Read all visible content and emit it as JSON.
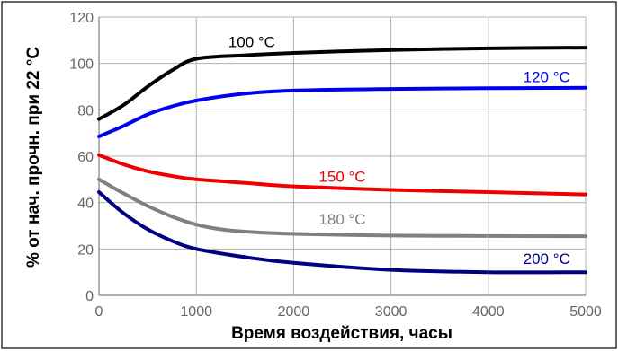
{
  "chart_data": {
    "type": "line",
    "title": "",
    "xlabel": "Время воздействия, часы",
    "ylabel": "% от нач. прочн. при 22 °C",
    "xlim": [
      0,
      5000
    ],
    "ylim": [
      0,
      120
    ],
    "x_ticks": [
      "0",
      "1000",
      "2000",
      "3000",
      "4000",
      "5000"
    ],
    "y_ticks": [
      "0",
      "20",
      "40",
      "60",
      "80",
      "100",
      "120"
    ],
    "grid": true,
    "legend": "none",
    "series": [
      {
        "name": "100 °C",
        "color": "#000000",
        "x": [
          0,
          250,
          500,
          750,
          1000,
          1500,
          2000,
          3000,
          4000,
          5000
        ],
        "y": [
          76,
          82,
          90,
          97,
          102,
          103.5,
          104.5,
          105.8,
          106.5,
          106.8
        ],
        "label_pos": {
          "x": 1570,
          "y": 107
        }
      },
      {
        "name": "120 °C",
        "color": "#0000ee",
        "x": [
          0,
          250,
          500,
          750,
          1000,
          1500,
          2000,
          3000,
          4000,
          5000
        ],
        "y": [
          68.5,
          73,
          78,
          81.5,
          84,
          87,
          88.3,
          89,
          89.3,
          89.5
        ],
        "label_pos": {
          "x": 4600,
          "y": 92
        }
      },
      {
        "name": "150 °C",
        "color": "#ee0000",
        "x": [
          0,
          250,
          500,
          750,
          1000,
          1500,
          2000,
          3000,
          4000,
          5000
        ],
        "y": [
          60.5,
          56.5,
          53.5,
          51.5,
          50,
          48.5,
          47,
          45.5,
          44.5,
          43.5
        ],
        "label_pos": {
          "x": 2500,
          "y": 49
        }
      },
      {
        "name": "180 °C",
        "color": "#808080",
        "x": [
          0,
          250,
          500,
          750,
          1000,
          1250,
          1500,
          2000,
          3000,
          4000,
          5000
        ],
        "y": [
          50,
          44,
          38.5,
          34,
          30.5,
          28.5,
          27.5,
          26.5,
          25.8,
          25.6,
          25.5
        ],
        "label_pos": {
          "x": 2500,
          "y": 30.5
        }
      },
      {
        "name": "200 °C",
        "color": "#000080",
        "x": [
          0,
          250,
          500,
          750,
          1000,
          1500,
          2000,
          3000,
          4000,
          5000
        ],
        "y": [
          44.5,
          35.5,
          28.5,
          23.5,
          20,
          16.5,
          14,
          11,
          10,
          10
        ],
        "label_pos": {
          "x": 4600,
          "y": 13.5
        }
      }
    ]
  }
}
